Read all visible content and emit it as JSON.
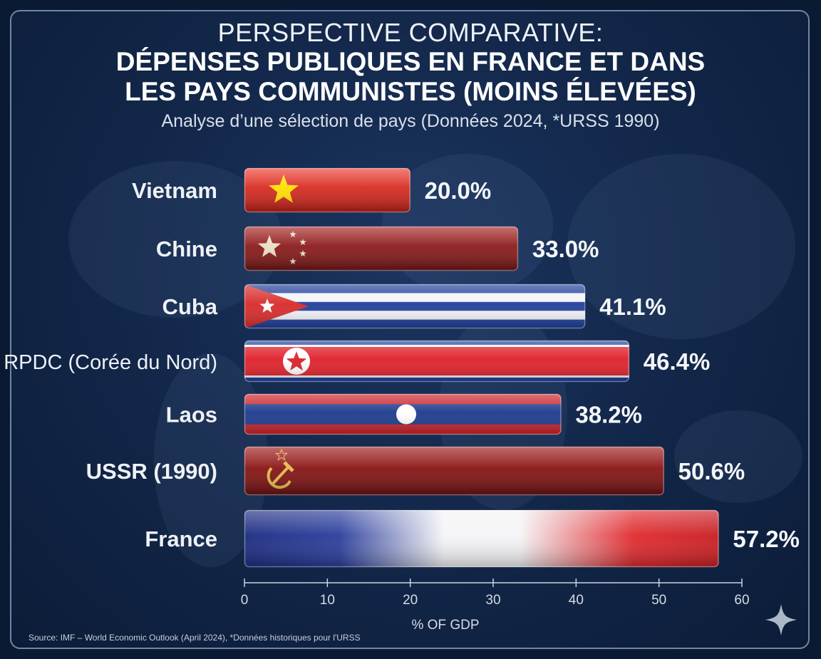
{
  "title": {
    "line1": "PERSPECTIVE COMPARATIVE:",
    "line2": "DÉPENSES PUBLIQUES EN FRANCE ET DANS",
    "line3": "LES PAYS COMMUNISTES (MOINS ÉLEVÉES)",
    "subtitle": "Analyse d’une sélection de pays (Données 2024, *URSS 1990)"
  },
  "source": "Source: IMF – World Economic Outlook (April 2024), *Données historiques pour l'URSS",
  "chart_data": {
    "type": "bar",
    "orientation": "horizontal",
    "categories": [
      "Vietnam",
      "Chine",
      "Cuba",
      "RPDC (Corée du Nord)",
      "Laos",
      "USSR (1990)",
      "France"
    ],
    "values": [
      20.0,
      33.0,
      41.1,
      46.4,
      38.2,
      50.6,
      57.2
    ],
    "labels": [
      "20.0%",
      "33.0%",
      "41.1%",
      "46.4%",
      "38.2%",
      "50.6%",
      "57.2%"
    ],
    "xlabel": "% OF GDP",
    "xlim": [
      0,
      60
    ],
    "xticks": [
      0,
      10,
      20,
      30,
      40,
      50,
      60
    ],
    "bar_styles": [
      "flag-vietnam",
      "flag-china",
      "flag-cuba",
      "flag-north-korea",
      "flag-laos",
      "flag-ussr",
      "flag-france"
    ],
    "grid": false
  },
  "colors": {
    "background": "#13284b",
    "vietnam_red": "#da251d",
    "china_red": "#8e1b1b",
    "cuba_blue": "#1f3f9a",
    "nk_red": "#e0202a",
    "laos_blue": "#1c3a8c",
    "ussr_red": "#8a1414",
    "france_blue": "#1f2f8a",
    "france_red": "#e0262b",
    "star_yellow": "#ffde00"
  }
}
